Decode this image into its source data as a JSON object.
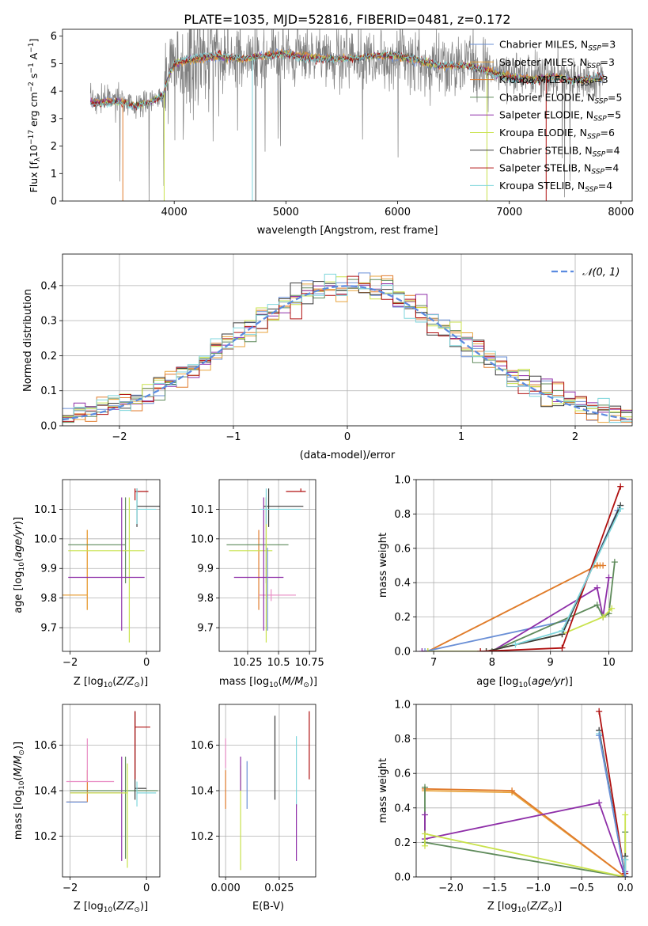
{
  "figure_title": "PLATE=1035, MJD=52816, FIBERID=0481, z=0.172",
  "colors": {
    "Chabrier MILES": "#6a8fd6",
    "Salpeter MILES": "#e8a33c",
    "Kroupa MILES": "#e07b2c",
    "Chabrier ELODIE": "#5e8a5a",
    "Salpeter ELODIE": "#8e2fa8",
    "Kroupa ELODIE": "#c9e24d",
    "Chabrier STELIB": "#3a3a3a",
    "Salpeter STELIB": "#b01010",
    "Kroupa STELIB": "#7fd6dc",
    "data": "#7f7f7f",
    "gaussian": "#5b8be0",
    "pink": "#e88cc4"
  },
  "chart_data": [
    {
      "id": "spectrum",
      "type": "line",
      "title": "PLATE=1035, MJD=52816, FIBERID=0481, z=0.172",
      "xlabel": "wavelength [Angstrom, rest frame]",
      "ylabel": "Flux [f_λ 10^-17 erg cm^-2 s^-1 A^-1]",
      "xlim": [
        3000,
        8100
      ],
      "ylim": [
        0,
        6.25
      ],
      "xticks": [
        4000,
        5000,
        6000,
        7000,
        8000
      ],
      "yticks": [
        0,
        1,
        2,
        3,
        4,
        5,
        6
      ],
      "legend_position": "right",
      "legend": [
        {
          "name": "Chabrier MILES, N_SSP=3",
          "prefix": "Chabrier MILES, N",
          "sub": "SSP",
          "suffix": "=3"
        },
        {
          "name": "Salpeter MILES, N_SSP=3",
          "prefix": "Salpeter MILES, N",
          "sub": "SSP",
          "suffix": "=3"
        },
        {
          "name": "Kroupa MILES, N_SSP=3",
          "prefix": "Kroupa MILES, N",
          "sub": "SSP",
          "suffix": "=3"
        },
        {
          "name": "Chabrier ELODIE, N_SSP=5",
          "prefix": "Chabrier ELODIE, N",
          "sub": "SSP",
          "suffix": "=5"
        },
        {
          "name": "Salpeter ELODIE, N_SSP=5",
          "prefix": "Salpeter ELODIE, N",
          "sub": "SSP",
          "suffix": "=5"
        },
        {
          "name": "Kroupa ELODIE, N_SSP=6",
          "prefix": "Kroupa ELODIE, N",
          "sub": "SSP",
          "suffix": "=6"
        },
        {
          "name": "Chabrier STELIB, N_SSP=4",
          "prefix": "Chabrier STELIB, N",
          "sub": "SSP",
          "suffix": "=4"
        },
        {
          "name": "Salpeter STELIB, N_SSP=4",
          "prefix": "Salpeter STELIB, N",
          "sub": "SSP",
          "suffix": "=4"
        },
        {
          "name": "Kroupa STELIB, N_SSP=4",
          "prefix": "Kroupa STELIB, N",
          "sub": "SSP",
          "suffix": "=4"
        }
      ],
      "data_x_range": [
        3250,
        7850
      ],
      "model_continuum": [
        [
          3250,
          3.65
        ],
        [
          3500,
          3.7
        ],
        [
          3650,
          3.5
        ],
        [
          3800,
          3.6
        ],
        [
          3900,
          3.8
        ],
        [
          3950,
          4.5
        ],
        [
          4000,
          4.95
        ],
        [
          4200,
          5.1
        ],
        [
          4400,
          5.2
        ],
        [
          4600,
          5.15
        ],
        [
          4800,
          5.3
        ],
        [
          5000,
          5.45
        ],
        [
          5200,
          5.3
        ],
        [
          5400,
          5.25
        ],
        [
          5600,
          5.2
        ],
        [
          5800,
          5.25
        ],
        [
          6000,
          5.2
        ],
        [
          6200,
          5.0
        ],
        [
          6400,
          4.85
        ],
        [
          6600,
          4.95
        ],
        [
          6800,
          4.8
        ],
        [
          7000,
          4.6
        ],
        [
          7200,
          4.5
        ],
        [
          7400,
          4.55
        ],
        [
          7600,
          4.35
        ],
        [
          7850,
          4.45
        ]
      ]
    },
    {
      "id": "residuals",
      "type": "histogram",
      "xlabel": "(data-model)/error",
      "ylabel": "Normed distribution",
      "xlim": [
        -2.5,
        2.5
      ],
      "ylim": [
        0,
        0.49
      ],
      "xticks": [
        -2,
        -1,
        0,
        1,
        2
      ],
      "yticks": [
        0.0,
        0.1,
        0.2,
        0.3,
        0.4
      ],
      "grid": true,
      "legend_position": "top-right",
      "legend": "𝒩(0, 1)",
      "bin_width": 0.1,
      "gaussian": {
        "mu": 0,
        "sigma": 1
      }
    },
    {
      "id": "age_vs_Z",
      "type": "scatter",
      "xlabel": "Z [log10(Z/Z⊙)]",
      "ylabel": "age  [log10(age/yr)]",
      "xlim": [
        -2.2,
        0.35
      ],
      "ylim": [
        9.62,
        10.2
      ],
      "xticks": [
        -2,
        0
      ],
      "yticks": [
        9.7,
        9.8,
        9.9,
        10.0,
        10.1
      ],
      "grid": true,
      "points": [
        {
          "model": "Kroupa MILES",
          "x": -1.55,
          "xerr": [
            0.7,
            0.0
          ],
          "y": 9.81,
          "yerr": [
            0.05,
            0.22
          ]
        },
        {
          "model": "Salpeter MILES",
          "x": -1.55,
          "xerr": [
            0.7,
            0.0
          ],
          "y": 9.81,
          "yerr": [
            0.05,
            0.22
          ]
        },
        {
          "model": "Chabrier ELODIE",
          "x": -0.55,
          "xerr": [
            1.5,
            0.0
          ],
          "y": 9.98,
          "yerr": [
            0.13,
            0.16
          ]
        },
        {
          "model": "Kroupa ELODIE",
          "x": -0.45,
          "xerr": [
            1.6,
            0.4
          ],
          "y": 9.96,
          "yerr": [
            0.31,
            0.18
          ]
        },
        {
          "model": "Salpeter ELODIE",
          "x": -0.65,
          "xerr": [
            1.4,
            0.6
          ],
          "y": 9.87,
          "yerr": [
            0.18,
            0.27
          ]
        },
        {
          "model": "Chabrier STELIB",
          "x": -0.25,
          "xerr": [
            0.0,
            0.6
          ],
          "y": 10.11,
          "yerr": [
            0.07,
            0.06
          ]
        },
        {
          "model": "Salpeter STELIB",
          "x": -0.3,
          "xerr": [
            0.0,
            0.35
          ],
          "y": 10.16,
          "yerr": [
            0.03,
            0.01
          ]
        },
        {
          "model": "Kroupa STELIB",
          "x": -0.25,
          "xerr": [
            0.0,
            0.5
          ],
          "y": 10.1,
          "yerr": [
            0.05,
            0.07
          ]
        }
      ]
    },
    {
      "id": "age_vs_mass",
      "type": "scatter",
      "xlabel": "mass [log10(M/M⊙)]",
      "ylabel": "",
      "xlim": [
        10.02,
        10.8
      ],
      "ylim": [
        9.62,
        10.2
      ],
      "xticks": [
        10.25,
        10.5,
        10.75
      ],
      "yticks": [
        9.7,
        9.8,
        9.9,
        10.0,
        10.1
      ],
      "grid": true,
      "points": [
        {
          "model": "Kroupa MILES",
          "x": 10.34,
          "xerr": [
            0.0,
            0.0
          ],
          "y": 9.81,
          "yerr": [
            0.05,
            0.22
          ]
        },
        {
          "model": "pink",
          "x": 10.44,
          "xerr": [
            0.1,
            0.2
          ],
          "y": 9.81,
          "yerr": [
            0.02,
            0.02
          ]
        },
        {
          "model": "Chabrier ELODIE",
          "x": 10.4,
          "xerr": [
            0.32,
            0.18
          ],
          "y": 9.98,
          "yerr": [
            0.13,
            0.16
          ]
        },
        {
          "model": "Kroupa ELODIE",
          "x": 10.4,
          "xerr": [
            0.3,
            0.05
          ],
          "y": 9.96,
          "yerr": [
            0.31,
            0.18
          ]
        },
        {
          "model": "Salpeter ELODIE",
          "x": 10.38,
          "xerr": [
            0.24,
            0.16
          ],
          "y": 9.87,
          "yerr": [
            0.18,
            0.27
          ]
        },
        {
          "model": "Chabrier MILES",
          "x": 10.41,
          "xerr": [
            0.0,
            0.0
          ],
          "y": 9.87,
          "yerr": [
            0.18,
            0.1
          ]
        },
        {
          "model": "Chabrier STELIB",
          "x": 10.42,
          "xerr": [
            0.04,
            0.28
          ],
          "y": 10.11,
          "yerr": [
            0.07,
            0.06
          ]
        },
        {
          "model": "Salpeter STELIB",
          "x": 10.68,
          "xerr": [
            0.12,
            0.04
          ],
          "y": 10.16,
          "yerr": [
            0.0,
            0.01
          ]
        },
        {
          "model": "Kroupa STELIB",
          "x": 10.4,
          "xerr": [
            0.05,
            0.28
          ],
          "y": 10.1,
          "yerr": [
            0.05,
            0.07
          ]
        }
      ]
    },
    {
      "id": "weight_vs_age",
      "type": "line",
      "xlabel": "age  [log10(age/yr)]",
      "ylabel": "mass weight",
      "xlim": [
        6.7,
        10.4
      ],
      "ylim": [
        0,
        1.0
      ],
      "xticks": [
        7,
        8,
        9,
        10
      ],
      "yticks": [
        0.0,
        0.2,
        0.4,
        0.6,
        0.8,
        1.0
      ],
      "grid": true,
      "series": [
        {
          "model": "Salpeter MILES",
          "x": [
            6.9,
            9.8,
            9.85
          ],
          "y": [
            0.0,
            0.5,
            0.5
          ]
        },
        {
          "model": "Kroupa MILES",
          "x": [
            6.9,
            9.8,
            9.9
          ],
          "y": [
            0.0,
            0.5,
            0.5
          ]
        },
        {
          "model": "Chabrier MILES",
          "x": [
            6.85,
            9.3,
            10.15
          ],
          "y": [
            0.0,
            0.18,
            0.82
          ]
        },
        {
          "model": "Salpeter ELODIE",
          "x": [
            6.8,
            8.0,
            9.8,
            9.9,
            10.0
          ],
          "y": [
            0.0,
            0.0,
            0.37,
            0.2,
            0.43
          ]
        },
        {
          "model": "Chabrier ELODIE",
          "x": [
            8.0,
            9.8,
            9.9,
            10.0,
            10.1
          ],
          "y": [
            0.0,
            0.27,
            0.2,
            0.22,
            0.52
          ]
        },
        {
          "model": "Kroupa ELODIE",
          "x": [
            6.9,
            7.9,
            9.2,
            9.9,
            10.05
          ],
          "y": [
            0.0,
            0.0,
            0.1,
            0.2,
            0.25
          ]
        },
        {
          "model": "Chabrier STELIB",
          "x": [
            7.9,
            9.2,
            10.2
          ],
          "y": [
            0.0,
            0.1,
            0.85
          ]
        },
        {
          "model": "Salpeter STELIB",
          "x": [
            7.8,
            9.2,
            10.2
          ],
          "y": [
            0.0,
            0.02,
            0.96
          ]
        },
        {
          "model": "Kroupa STELIB",
          "x": [
            8.4,
            9.2,
            10.2
          ],
          "y": [
            0.04,
            0.12,
            0.83
          ]
        }
      ]
    },
    {
      "id": "mass_vs_Z",
      "type": "scatter",
      "xlabel": "Z [log10(Z/Z⊙)]",
      "ylabel": "mass [log10(M/M⊙)]",
      "xlim": [
        -2.2,
        0.35
      ],
      "ylim": [
        10.02,
        10.78
      ],
      "xticks": [
        -2,
        0
      ],
      "yticks": [
        10.2,
        10.4,
        10.6
      ],
      "grid": true,
      "points": [
        {
          "model": "Kroupa MILES",
          "x": -1.55,
          "xerr": [
            0.55,
            0.0
          ],
          "y": 10.35,
          "yerr": [
            0.0,
            0.14
          ]
        },
        {
          "model": "pink",
          "x": -1.55,
          "xerr": [
            0.55,
            0.7
          ],
          "y": 10.44,
          "yerr": [
            0.0,
            0.19
          ]
        },
        {
          "model": "Chabrier MILES",
          "x": -1.55,
          "xerr": [
            0.55,
            0.0
          ],
          "y": 10.35,
          "yerr": [
            0.0,
            0.0
          ]
        },
        {
          "model": "Chabrier ELODIE",
          "x": -0.55,
          "xerr": [
            1.45,
            0.85
          ],
          "y": 10.4,
          "yerr": [
            0.3,
            0.15
          ]
        },
        {
          "model": "Salpeter ELODIE",
          "x": -0.65,
          "xerr": [
            1.35,
            0.0
          ],
          "y": 10.39,
          "yerr": [
            0.3,
            0.16
          ]
        },
        {
          "model": "Kroupa ELODIE",
          "x": -0.5,
          "xerr": [
            1.5,
            0.0
          ],
          "y": 10.39,
          "yerr": [
            0.33,
            0.13
          ]
        },
        {
          "model": "Chabrier STELIB",
          "x": -0.3,
          "xerr": [
            0.0,
            0.3
          ],
          "y": 10.41,
          "yerr": [
            0.05,
            0.34
          ]
        },
        {
          "model": "Salpeter STELIB",
          "x": -0.3,
          "xerr": [
            0.0,
            0.4
          ],
          "y": 10.68,
          "yerr": [
            0.23,
            0.07
          ]
        },
        {
          "model": "Kroupa STELIB",
          "x": -0.25,
          "xerr": [
            0.0,
            0.5
          ],
          "y": 10.39,
          "yerr": [
            0.06,
            0.05
          ]
        }
      ]
    },
    {
      "id": "mass_vs_EBV",
      "type": "scatter",
      "xlabel": "E(B-V)",
      "ylabel": "",
      "xlim": [
        -0.003,
        0.042
      ],
      "ylim": [
        10.02,
        10.78
      ],
      "xticks": [
        0.0,
        0.025
      ],
      "xticklabels": [
        "0.000",
        "0.025"
      ],
      "yticks": [
        10.2,
        10.4,
        10.6
      ],
      "grid": true,
      "points": [
        {
          "model": "pink",
          "x": 0.0,
          "y": 10.5,
          "yerr": [
            0.0,
            0.13
          ]
        },
        {
          "model": "Kroupa MILES",
          "x": 0.0,
          "y": 10.4,
          "yerr": [
            0.08,
            0.09
          ]
        },
        {
          "model": "Kroupa ELODIE",
          "x": 0.007,
          "y": 10.3,
          "yerr": [
            0.25,
            0.21
          ]
        },
        {
          "model": "Salpeter ELODIE",
          "x": 0.007,
          "y": 10.4,
          "yerr": [
            0.0,
            0.15
          ]
        },
        {
          "model": "Chabrier MILES",
          "x": 0.01,
          "y": 10.42,
          "yerr": [
            0.1,
            0.11
          ]
        },
        {
          "model": "Chabrier STELIB",
          "x": 0.023,
          "y": 10.55,
          "yerr": [
            0.19,
            0.18
          ]
        },
        {
          "model": "Kroupa STELIB",
          "x": 0.033,
          "y": 10.5,
          "yerr": [
            0.17,
            0.14
          ]
        },
        {
          "model": "Salpeter ELODIE",
          "x": 0.033,
          "y": 10.2,
          "yerr": [
            0.11,
            0.14
          ]
        },
        {
          "model": "Salpeter STELIB",
          "x": 0.039,
          "y": 10.6,
          "yerr": [
            0.15,
            0.15
          ]
        }
      ]
    },
    {
      "id": "weight_vs_Z",
      "type": "line",
      "xlabel": "Z [log10(Z/Z⊙)]",
      "ylabel": "mass weight",
      "xlim": [
        -2.4,
        0.08
      ],
      "ylim": [
        0,
        1.0
      ],
      "xticks": [
        -2.0,
        -1.5,
        -1.0,
        -0.5,
        0.0
      ],
      "yticks": [
        0.0,
        0.2,
        0.4,
        0.6,
        0.8,
        1.0
      ],
      "grid": true,
      "series": [
        {
          "model": "Salpeter MILES",
          "x": [
            -2.3,
            -1.3,
            0.0
          ],
          "y": [
            0.5,
            0.49,
            0.0
          ]
        },
        {
          "model": "Kroupa MILES",
          "x": [
            -2.3,
            -1.3,
            0.0
          ],
          "y": [
            0.51,
            0.5,
            0.0
          ]
        },
        {
          "model": "Chabrier ELODIE",
          "x": [
            -2.3,
            -2.3,
            0.0,
            0.0,
            0.0
          ],
          "y": [
            0.52,
            0.2,
            0.0,
            0.1,
            0.26
          ]
        },
        {
          "model": "Salpeter ELODIE",
          "x": [
            -2.3,
            -2.3,
            -0.3,
            0.0,
            0.0
          ],
          "y": [
            0.36,
            0.22,
            0.43,
            0.0,
            0.03
          ]
        },
        {
          "model": "Kroupa ELODIE",
          "x": [
            -2.3,
            -2.3,
            0.0,
            0.0
          ],
          "y": [
            0.18,
            0.25,
            0.0,
            0.36
          ]
        },
        {
          "model": "Chabrier STELIB",
          "x": [
            -0.3,
            0.0,
            0.0
          ],
          "y": [
            0.85,
            0.0,
            0.12
          ]
        },
        {
          "model": "Salpeter STELIB",
          "x": [
            -0.3,
            0.0,
            0.0
          ],
          "y": [
            0.96,
            0.0,
            0.02
          ]
        },
        {
          "model": "Kroupa STELIB",
          "x": [
            -0.3,
            0.0,
            0.0
          ],
          "y": [
            0.83,
            0.0,
            0.1
          ]
        },
        {
          "model": "Chabrier MILES",
          "x": [
            -0.3,
            0.0
          ],
          "y": [
            0.82,
            0.0
          ]
        }
      ]
    }
  ]
}
